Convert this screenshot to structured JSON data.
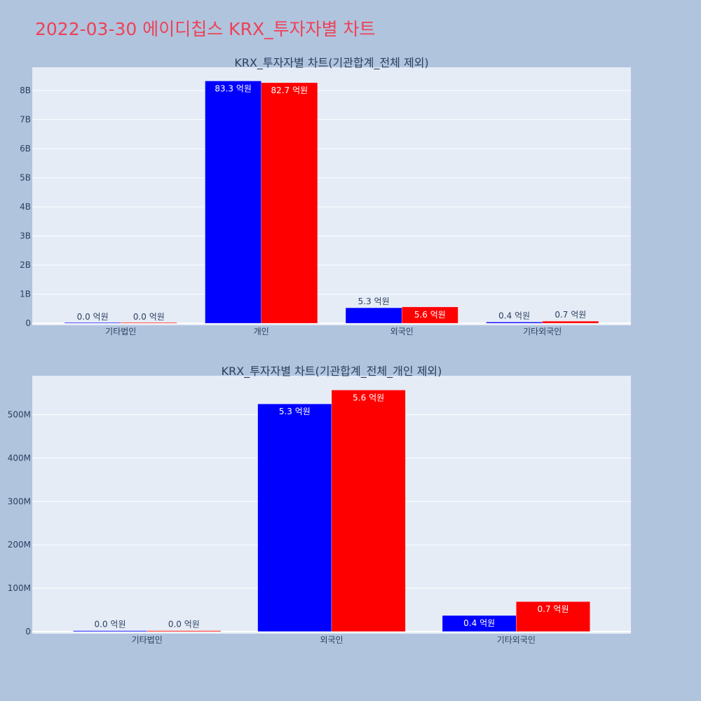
{
  "title": "2022-03-30 에이디칩스 KRX_투자자별 차트",
  "chart_data": [
    {
      "type": "bar",
      "title": "KRX_투자자별 차트(기관합계_전체 제외)",
      "categories": [
        "기타법인",
        "개인",
        "외국인",
        "기타외국인"
      ],
      "series": [
        {
          "color": "#0000ff",
          "values": [
            2000000,
            8330000000,
            530000000,
            40000000
          ],
          "labels": [
            "0.0 억원",
            "83.3 억원",
            "5.3 억원",
            "0.4 억원"
          ]
        },
        {
          "color": "#ff0000",
          "values": [
            2000000,
            8270000000,
            560000000,
            70000000
          ],
          "labels": [
            "0.0 억원",
            "82.7 억원",
            "5.6 억원",
            "0.7 억원"
          ]
        }
      ],
      "yticks": [
        {
          "value": 0,
          "label": "0"
        },
        {
          "value": 1000000000,
          "label": "1B"
        },
        {
          "value": 2000000000,
          "label": "2B"
        },
        {
          "value": 3000000000,
          "label": "3B"
        },
        {
          "value": 4000000000,
          "label": "4B"
        },
        {
          "value": 5000000000,
          "label": "5B"
        },
        {
          "value": 6000000000,
          "label": "6B"
        },
        {
          "value": 7000000000,
          "label": "7B"
        },
        {
          "value": 8000000000,
          "label": "8B"
        }
      ],
      "ylim": [
        -70000000,
        8800000000
      ],
      "grid": true
    },
    {
      "type": "bar",
      "title": "KRX_투자자별 차트(기관합계_전체_개인 제외)",
      "categories": [
        "기타법인",
        "외국인",
        "기타외국인"
      ],
      "series": [
        {
          "color": "#0000ff",
          "values": [
            2000000,
            525000000,
            37000000
          ],
          "labels": [
            "0.0 억원",
            "5.3 억원",
            "0.4 억원"
          ]
        },
        {
          "color": "#ff0000",
          "values": [
            2000000,
            557000000,
            69000000
          ],
          "labels": [
            "0.0 억원",
            "5.6 억원",
            "0.7 억원"
          ]
        }
      ],
      "yticks": [
        {
          "value": 0,
          "label": "0"
        },
        {
          "value": 100000000,
          "label": "100M"
        },
        {
          "value": 200000000,
          "label": "200M"
        },
        {
          "value": 300000000,
          "label": "300M"
        },
        {
          "value": 400000000,
          "label": "400M"
        },
        {
          "value": 500000000,
          "label": "500M"
        }
      ],
      "ylim": [
        -5000000,
        590000000
      ],
      "grid": true
    }
  ]
}
